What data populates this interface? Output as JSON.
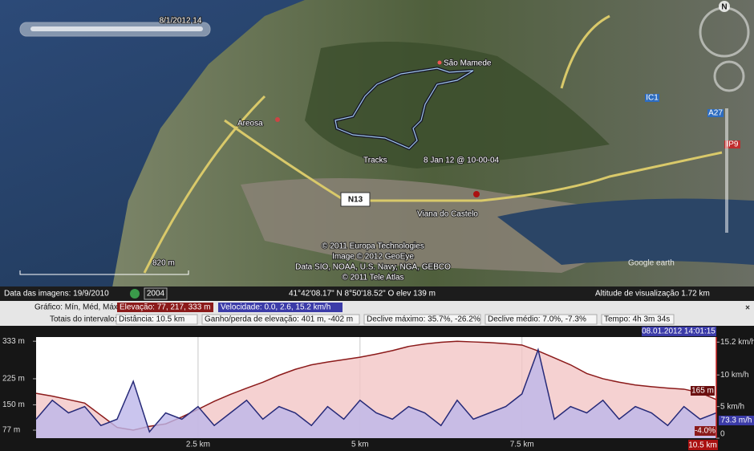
{
  "map": {
    "time_slider": "8/1/2012 14",
    "places": {
      "sao_mamede": "São Mamede",
      "areosa": "Areosa",
      "city": "Viana do Castelo"
    },
    "track_label": {
      "name": "Tracks",
      "date": "8 Jan 12 @ 10-00-04"
    },
    "roads": {
      "n13": "N13",
      "ic1": "IC1",
      "a27": "A27",
      "ip9": "IP9"
    },
    "copyright": [
      "© 2011 Europa Technologies",
      "Image © 2012 GeoEye",
      "Data SIO, NOAA, U.S. Navy, NGA, GEBCO",
      "© 2011 Tele Atlas"
    ],
    "scale": "820 m",
    "logo": "Google earth",
    "compass": "N"
  },
  "status_bar": {
    "imagery_date": "Data das imagens: 19/9/2010",
    "year": "2004",
    "coordinates": "41°42'08.17\" N   8°50'18.52\" O   elev   139 m",
    "eye_altitude": "Altitude de visualização     1.72 km"
  },
  "profile": {
    "stats_row": {
      "label": "Gráfico: Mín, Méd, Máx",
      "elevation": "Elevação: 77, 217, 333 m",
      "speed": "Velocidade: 0.0, 2.6, 15.2 km/h"
    },
    "totals_row": {
      "label": "Totais do intervalo:",
      "items": [
        "Distância: 10.5 km",
        "Ganho/perda de elevação: 401 m, -402 m",
        "Declive máximo: 35.7%, -26.2%",
        "Declive médio: 7.0%, -7.3%",
        "Tempo: 4h 3m 34s"
      ]
    },
    "timestamp": "08.01.2012 14:01:15",
    "cursor": {
      "elevation": "165 m",
      "speed": "73.3 m/h",
      "slope": "-4.0%",
      "distance": "10.5 km"
    },
    "close": "×",
    "x": [
      0,
      0.25,
      0.5,
      0.75,
      1,
      1.25,
      1.5,
      1.75,
      2,
      2.25,
      2.5,
      2.75,
      3,
      3.25,
      3.5,
      3.75,
      4,
      4.25,
      4.5,
      4.75,
      5,
      5.25,
      5.5,
      5.75,
      6,
      6.25,
      6.5,
      6.75,
      7,
      7.25,
      7.5,
      7.75,
      8,
      8.25,
      8.5,
      8.75,
      9,
      9.25,
      9.5,
      9.75,
      10,
      10.25,
      10.5
    ],
    "xlim": [
      0,
      10.5
    ],
    "xticks": [
      {
        "value": 2.5,
        "label": "2.5 km"
      },
      {
        "value": 5,
        "label": "5 km"
      },
      {
        "value": 7.5,
        "label": "7.5 km"
      }
    ],
    "ylim": [
      54,
      345
    ],
    "yticks": [
      {
        "value": 333,
        "label": "333 m"
      },
      {
        "value": 225,
        "label": "225 m"
      },
      {
        "value": 150,
        "label": "150 m"
      },
      {
        "value": 77,
        "label": "77 m"
      }
    ],
    "y2lim": [
      0,
      16
    ],
    "y2ticks": [
      {
        "value": 15.2,
        "label": "15.2 km/h"
      },
      {
        "value": 10,
        "label": "10 km/h"
      },
      {
        "value": 5,
        "label": "5 km/h"
      },
      0
    ],
    "series": [
      {
        "name": "Elevação",
        "color": "#8b1a1a",
        "fill": "#f3c6c6",
        "values": [
          183,
          175,
          165,
          155,
          120,
          85,
          77,
          88,
          95,
          115,
          137,
          160,
          180,
          198,
          215,
          235,
          252,
          265,
          273,
          280,
          287,
          296,
          306,
          318,
          325,
          330,
          333,
          331,
          329,
          326,
          322,
          305,
          285,
          265,
          240,
          225,
          215,
          207,
          202,
          198,
          195,
          185,
          165
        ]
      },
      {
        "name": "Velocidade",
        "axis": "y2",
        "color": "#262a78",
        "fill": "#bdb6ea",
        "values": [
          3,
          6,
          4,
          5,
          2,
          3,
          9,
          1,
          4,
          3,
          5,
          2,
          4,
          6,
          3,
          5,
          4,
          2,
          5,
          3,
          6,
          4,
          3,
          5,
          4,
          2,
          6,
          3,
          4,
          5,
          7,
          14,
          3,
          5,
          4,
          6,
          3,
          5,
          4,
          2,
          5,
          3,
          4
        ]
      }
    ]
  }
}
